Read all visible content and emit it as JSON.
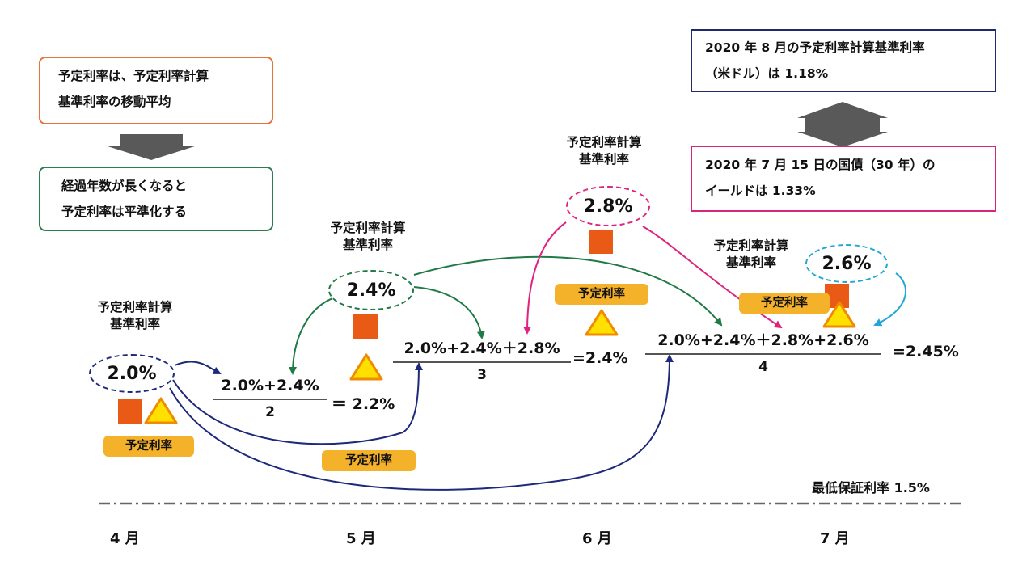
{
  "top_left_box": {
    "line1": "予定利率は、予定利率計算",
    "line2": "基準利率の移動平均"
  },
  "mid_left_box": {
    "line1": "経過年数が長くなると",
    "line2": "予定利率は平準化する"
  },
  "top_right_box1": {
    "line1": "2020 年 8 月の予定利率計算基準利率",
    "line2": "（米ドル）は 1.18%"
  },
  "top_right_box2": {
    "line1": "2020 年 7 月 15 日の国債（30 年）の",
    "line2": "イールドは 1.33%"
  },
  "base_rate_label": {
    "line1": "予定利率計算",
    "line2": "基準利率"
  },
  "assumed_rate_label": "予定利率",
  "rates": {
    "april": "2.0%",
    "may": "2.4%",
    "june": "2.8%",
    "july": "2.6%"
  },
  "formulas": {
    "may": {
      "numerator": "2.0%+2.4%",
      "denominator": "2",
      "result": "＝ 2.2%"
    },
    "june": {
      "numerator": "2.0%+2.4%＋2.8%",
      "denominator": "3",
      "result": "=2.4%"
    },
    "july": {
      "numerator": "2.0%+2.4%＋2.8%+2.6%",
      "denominator": "4",
      "result": "=2.45%"
    }
  },
  "minimum_guarantee": "最低保証利率 1.5%",
  "months": [
    "4 月",
    "5 月",
    "6 月",
    "7 月"
  ],
  "colors": {
    "orange_box": "#e8733a",
    "green_box": "#2e7d4f",
    "navy_box": "#1f2a6e",
    "magenta_box": "#d6257a",
    "navy_arrow": "#1d2a7a",
    "green_arrow": "#1f7a46",
    "magenta_arrow": "#e0237f",
    "cyan_arrow": "#22a6d6",
    "square": "#e85a16",
    "triangle_fill": "#ffe000",
    "triangle_stroke": "#f08a00",
    "pill": "#f4b12a",
    "grey_arrow": "#595959"
  },
  "icons": [
    "orange-square-icon",
    "yellow-triangle-icon",
    "down-arrow-icon",
    "double-arrow-icon"
  ]
}
